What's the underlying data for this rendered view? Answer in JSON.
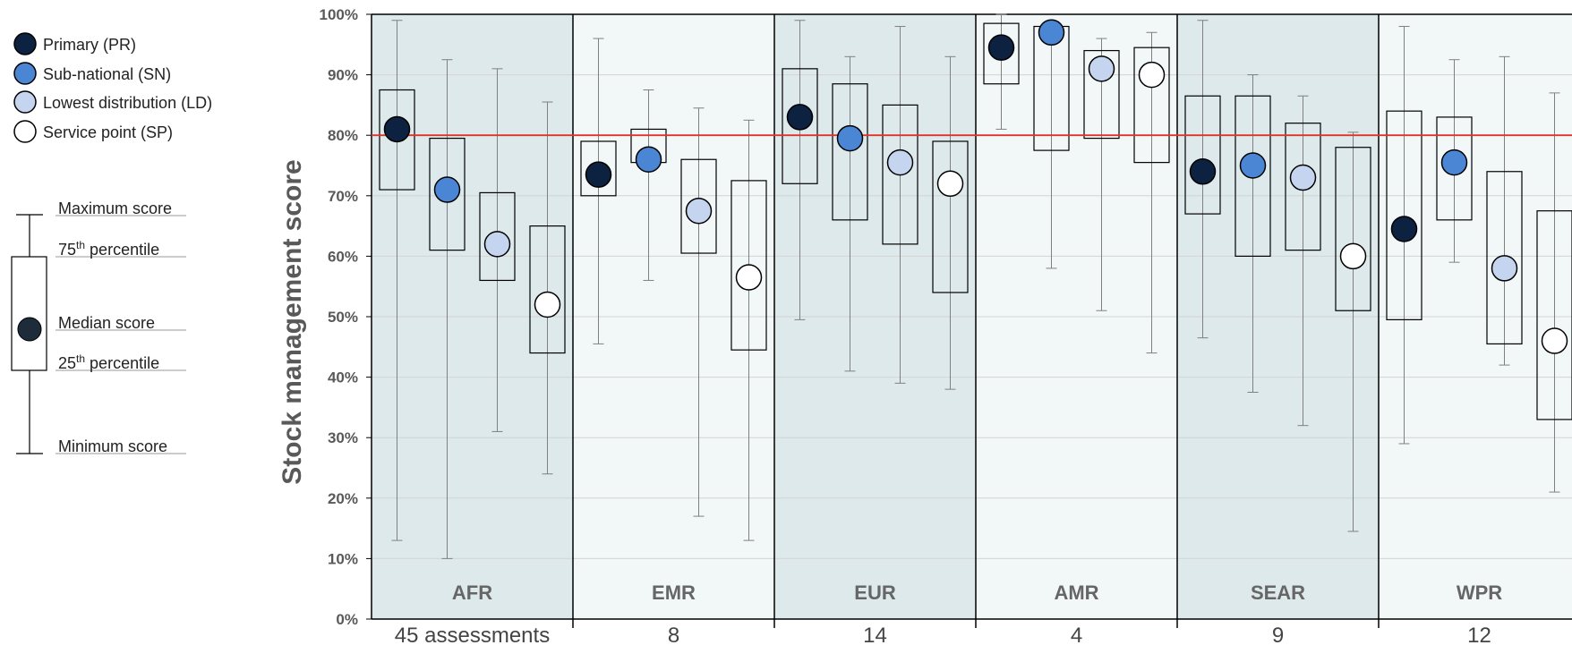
{
  "legend": {
    "items": [
      {
        "label": "Primary (PR)",
        "color": "#0d2240"
      },
      {
        "label": "Sub-national (SN)",
        "color": "#4a86d4"
      },
      {
        "label": "Lowest distribution (LD)",
        "color": "#c5d5ef"
      },
      {
        "label": "Service point (SP)",
        "color": "#ffffff"
      }
    ],
    "key": {
      "max": "Maximum score",
      "p75": "75",
      "p75_sup": "th",
      "p75_rest": " percentile",
      "median": "Median score",
      "p25": "25",
      "p25_sup": "th",
      "p25_rest": " percentile",
      "min": "Minimum score"
    }
  },
  "chart_data": {
    "type": "box",
    "ylabel": "Stock management score",
    "ylim": [
      0,
      100
    ],
    "yticks": [
      "0%",
      "10%",
      "20%",
      "30%",
      "40%",
      "50%",
      "60%",
      "70%",
      "80%",
      "90%",
      "100%"
    ],
    "reference_line": {
      "value": 80,
      "color": "#e0332b"
    },
    "series_names": [
      "Primary (PR)",
      "Sub-national (SN)",
      "Lowest distribution (LD)",
      "Service point (SP)"
    ],
    "series_colors": [
      "#0d2240",
      "#4a86d4",
      "#c5d5ef",
      "#ffffff"
    ],
    "regions": [
      {
        "name": "AFR",
        "count_label": "45 assessments",
        "shade": "#dde9ea",
        "boxes": [
          {
            "min": 13,
            "q1": 71,
            "median": 81,
            "q3": 87.5,
            "max": 99
          },
          {
            "min": 10,
            "q1": 61,
            "median": 71,
            "q3": 79.5,
            "max": 92.5
          },
          {
            "min": 31,
            "q1": 56,
            "median": 62,
            "q3": 70.5,
            "max": 91
          },
          {
            "min": 24,
            "q1": 44,
            "median": 52,
            "q3": 65,
            "max": 85.5
          }
        ]
      },
      {
        "name": "EMR",
        "count_label": "8",
        "shade": "#f2f7f8",
        "boxes": [
          {
            "min": 45.5,
            "q1": 70,
            "median": 73.5,
            "q3": 79,
            "max": 96
          },
          {
            "min": 56,
            "q1": 75.5,
            "median": 76,
            "q3": 81,
            "max": 87.5
          },
          {
            "min": 17,
            "q1": 60.5,
            "median": 67.5,
            "q3": 76,
            "max": 84.5
          },
          {
            "min": 13,
            "q1": 44.5,
            "median": 56.5,
            "q3": 72.5,
            "max": 82.5
          }
        ]
      },
      {
        "name": "EUR",
        "count_label": "14",
        "shade": "#dde9ea",
        "boxes": [
          {
            "min": 49.5,
            "q1": 72,
            "median": 83,
            "q3": 91,
            "max": 99
          },
          {
            "min": 41,
            "q1": 66,
            "median": 79.5,
            "q3": 88.5,
            "max": 93
          },
          {
            "min": 39,
            "q1": 62,
            "median": 75.5,
            "q3": 85,
            "max": 98
          },
          {
            "min": 38,
            "q1": 54,
            "median": 72,
            "q3": 79,
            "max": 93
          }
        ]
      },
      {
        "name": "AMR",
        "count_label": "4",
        "shade": "#f2f7f8",
        "boxes": [
          {
            "min": 81,
            "q1": 88.5,
            "median": 94.5,
            "q3": 98.5,
            "max": 100
          },
          {
            "min": 58,
            "q1": 77.5,
            "median": 97,
            "q3": 98,
            "max": 98.5
          },
          {
            "min": 51,
            "q1": 79.5,
            "median": 91,
            "q3": 94,
            "max": 96
          },
          {
            "min": 44,
            "q1": 75.5,
            "median": 90,
            "q3": 94.5,
            "max": 97
          }
        ]
      },
      {
        "name": "SEAR",
        "count_label": "9",
        "shade": "#dde9ea",
        "boxes": [
          {
            "min": 46.5,
            "q1": 67,
            "median": 74,
            "q3": 86.5,
            "max": 99
          },
          {
            "min": 37.5,
            "q1": 60,
            "median": 75,
            "q3": 86.5,
            "max": 90
          },
          {
            "min": 32,
            "q1": 61,
            "median": 73,
            "q3": 82,
            "max": 86.5
          },
          {
            "min": 14.5,
            "q1": 51,
            "median": 60,
            "q3": 78,
            "max": 80.5
          }
        ]
      },
      {
        "name": "WPR",
        "count_label": "12",
        "shade": "#f2f7f8",
        "boxes": [
          {
            "min": 29,
            "q1": 49.5,
            "median": 64.5,
            "q3": 84,
            "max": 98
          },
          {
            "min": 59,
            "q1": 66,
            "median": 75.5,
            "q3": 83,
            "max": 92.5
          },
          {
            "min": 42,
            "q1": 45.5,
            "median": 58,
            "q3": 74,
            "max": 93
          },
          {
            "min": 21,
            "q1": 33,
            "median": 46,
            "q3": 67.5,
            "max": 87
          }
        ]
      }
    ]
  }
}
